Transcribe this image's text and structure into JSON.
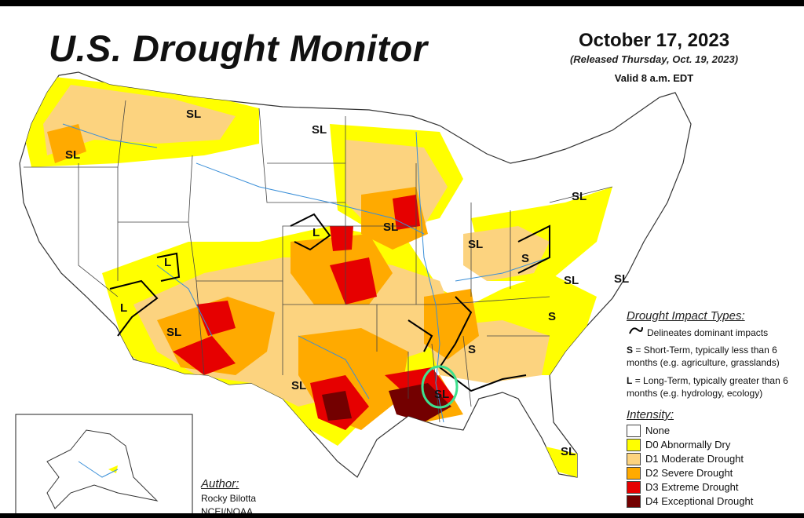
{
  "header": {
    "title": "U.S. Drought Monitor",
    "date": "October 17, 2023",
    "released": "(Released Thursday, Oct. 19, 2023)",
    "valid": "Valid 8 a.m. EDT"
  },
  "impact_types": {
    "heading": "Drought Impact Types:",
    "delineates": "Delineates dominant impacts",
    "short_term_key": "S",
    "short_term": "= Short-Term, typically less than 6 months (e.g. agriculture, grasslands)",
    "long_term_key": "L",
    "long_term": "= Long-Term, typically greater than 6 months (e.g. hydrology, ecology)"
  },
  "intensity": {
    "heading": "Intensity:",
    "levels": [
      {
        "label": "None",
        "color": "#ffffff"
      },
      {
        "label": "D0 Abnormally Dry",
        "color": "#ffff00"
      },
      {
        "label": "D1 Moderate Drought",
        "color": "#fcd37f"
      },
      {
        "label": "D2 Severe Drought",
        "color": "#ffaa00"
      },
      {
        "label": "D3 Extreme Drought",
        "color": "#e60000"
      },
      {
        "label": "D4 Exceptional Drought",
        "color": "#730000"
      }
    ]
  },
  "author": {
    "heading": "Author:",
    "name": "Rocky Bilotta",
    "org": "NCEI/NOAA"
  },
  "map_labels": [
    "SL",
    "SL",
    "SL",
    "SL",
    "SL",
    "L",
    "L",
    "L",
    "SL",
    "SL",
    "SL",
    "S",
    "SL",
    "SL",
    "S",
    "S",
    "SL",
    "SL",
    "SL"
  ],
  "annotation": {
    "color": "#3ee08f"
  }
}
